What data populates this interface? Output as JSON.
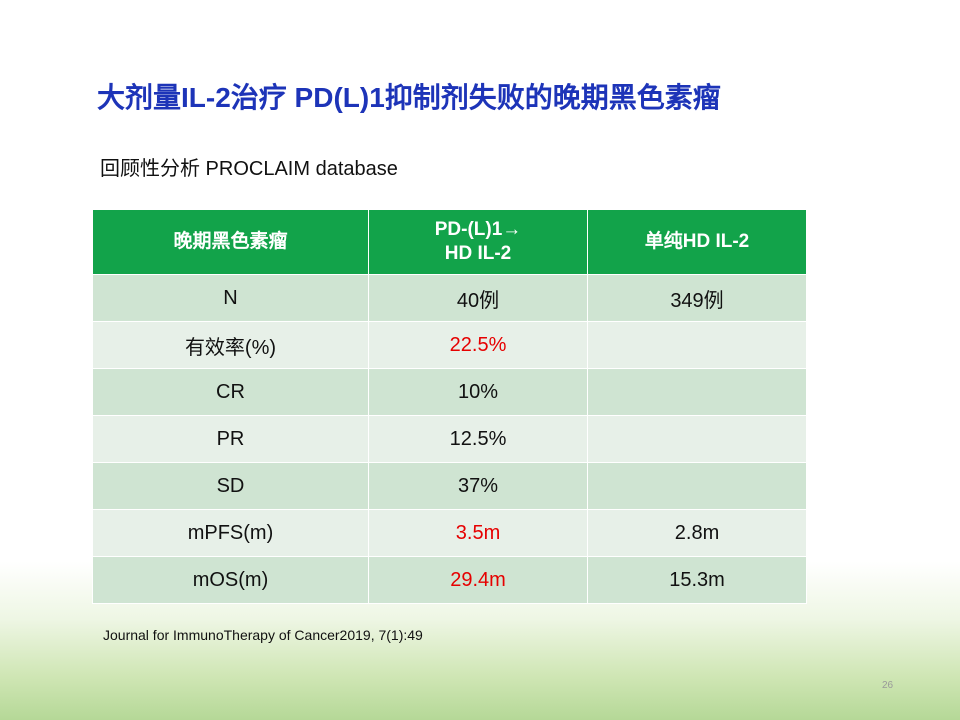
{
  "header": {
    "title": "大剂量IL-2治疗 PD(L)1抑制剂失败的晚期黑色素瘤",
    "subtitle": "回顾性分析 PROCLAIM database"
  },
  "table": {
    "header": [
      "晚期黑色素瘤",
      "PD-(L)1→\nHD IL-2",
      "单纯HD IL-2"
    ],
    "rows": [
      [
        "N",
        "40例",
        "349例"
      ],
      [
        "有效率(%)",
        "22.5%",
        null
      ],
      [
        "CR",
        "10%",
        null
      ],
      [
        "PR",
        "12.5%",
        null
      ],
      [
        "SD",
        "37%",
        null
      ],
      [
        "mPFS(m)",
        "3.5m",
        "2.8m"
      ],
      [
        "mOS(m)",
        "29.4m",
        "15.3m"
      ]
    ],
    "header_color": "#12a34a",
    "row_colors": [
      "#cfe4d2",
      "#e7f0e8"
    ],
    "highlight_color": "#e60000",
    "highlight_cells": [
      [
        1,
        1
      ],
      [
        5,
        1
      ],
      [
        6,
        1
      ]
    ]
  },
  "footer": {
    "reference": "Journal for ImmunoTherapy of Cancer2019, 7(1):49",
    "page_number": "26"
  }
}
